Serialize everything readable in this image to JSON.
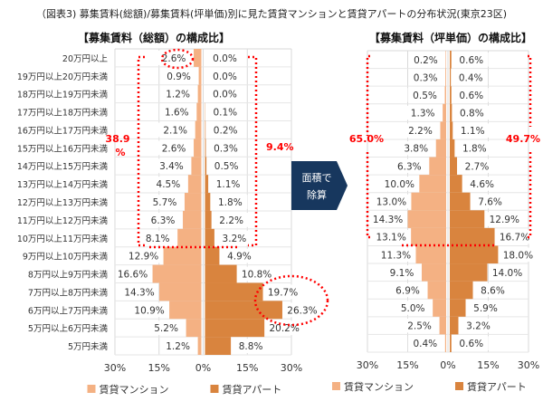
{
  "figure_title": "（図表3) 募集賃料(総額)/募集賃料(坪単価)別に見た賃貸マンションと賃貸アパートの分布状況(東京23区)",
  "arrow_label": [
    "面積で",
    "除算"
  ],
  "colors": {
    "mansion": "#F4B183",
    "apartment": "#D9843E",
    "annotation": "#FF0000",
    "arrow": "#17375E"
  },
  "chart_data": [
    {
      "type": "bar",
      "orientation": "horizontal-butterfly",
      "title": "【募集賃料（総額）の構成比】",
      "categories": [
        "20万円以上",
        "19万円以上20万円未満",
        "18万円以上19万円未満",
        "17万円以上18万円未満",
        "16万円以上17万円未満",
        "15万円以上16万円未満",
        "14万円以上15万円未満",
        "13万円以上14万円未満",
        "12万円以上13万円未満",
        "11万円以上12万円未満",
        "10万円以上11万円未満",
        "9万円以上10万円未満",
        "8万円以上9万円未満",
        "7万円以上8万円未満",
        "6万円以上7万円未満",
        "5万円以上6万円未満",
        "5万円未満"
      ],
      "series": [
        {
          "name": "賃貸マンション",
          "values": [
            2.6,
            0.9,
            1.2,
            1.6,
            2.1,
            2.6,
            3.4,
            4.5,
            5.7,
            6.3,
            8.1,
            12.9,
            16.6,
            14.3,
            10.9,
            5.2,
            1.2
          ]
        },
        {
          "name": "賃貸アパート",
          "values": [
            0.0,
            0.0,
            0.0,
            0.1,
            0.2,
            0.3,
            0.5,
            1.1,
            1.8,
            2.2,
            3.2,
            4.9,
            10.8,
            19.7,
            26.3,
            20.2,
            8.8
          ]
        }
      ],
      "xticks": [
        "30%",
        "15%",
        "0%",
        "15%",
        "30%"
      ],
      "xlim": [
        -30,
        30
      ],
      "annotations": {
        "left_total": "38.9%",
        "right_total": "9.4%"
      },
      "legend": "bottom",
      "grid": true
    },
    {
      "type": "bar",
      "orientation": "horizontal-butterfly",
      "title": "【募集賃料（坪単価）の構成比】",
      "series": [
        {
          "name": "賃貸マンション",
          "values": [
            0.2,
            0.3,
            0.5,
            1.3,
            2.2,
            3.8,
            6.3,
            10.0,
            13.0,
            14.3,
            13.1,
            11.3,
            9.1,
            6.9,
            5.0,
            2.5,
            0.4
          ]
        },
        {
          "name": "賃貸アパート",
          "values": [
            0.6,
            0.4,
            0.6,
            0.8,
            1.1,
            1.8,
            2.7,
            4.6,
            7.6,
            12.9,
            16.7,
            18.0,
            14.0,
            8.6,
            5.9,
            3.2,
            0.6
          ]
        }
      ],
      "xticks": [
        "30%",
        "15%",
        "0%",
        "15%",
        "30%"
      ],
      "xlim": [
        -30,
        30
      ],
      "annotations": {
        "left_total": "65.0%",
        "right_total": "49.7%"
      },
      "legend": "bottom",
      "grid": true
    }
  ]
}
